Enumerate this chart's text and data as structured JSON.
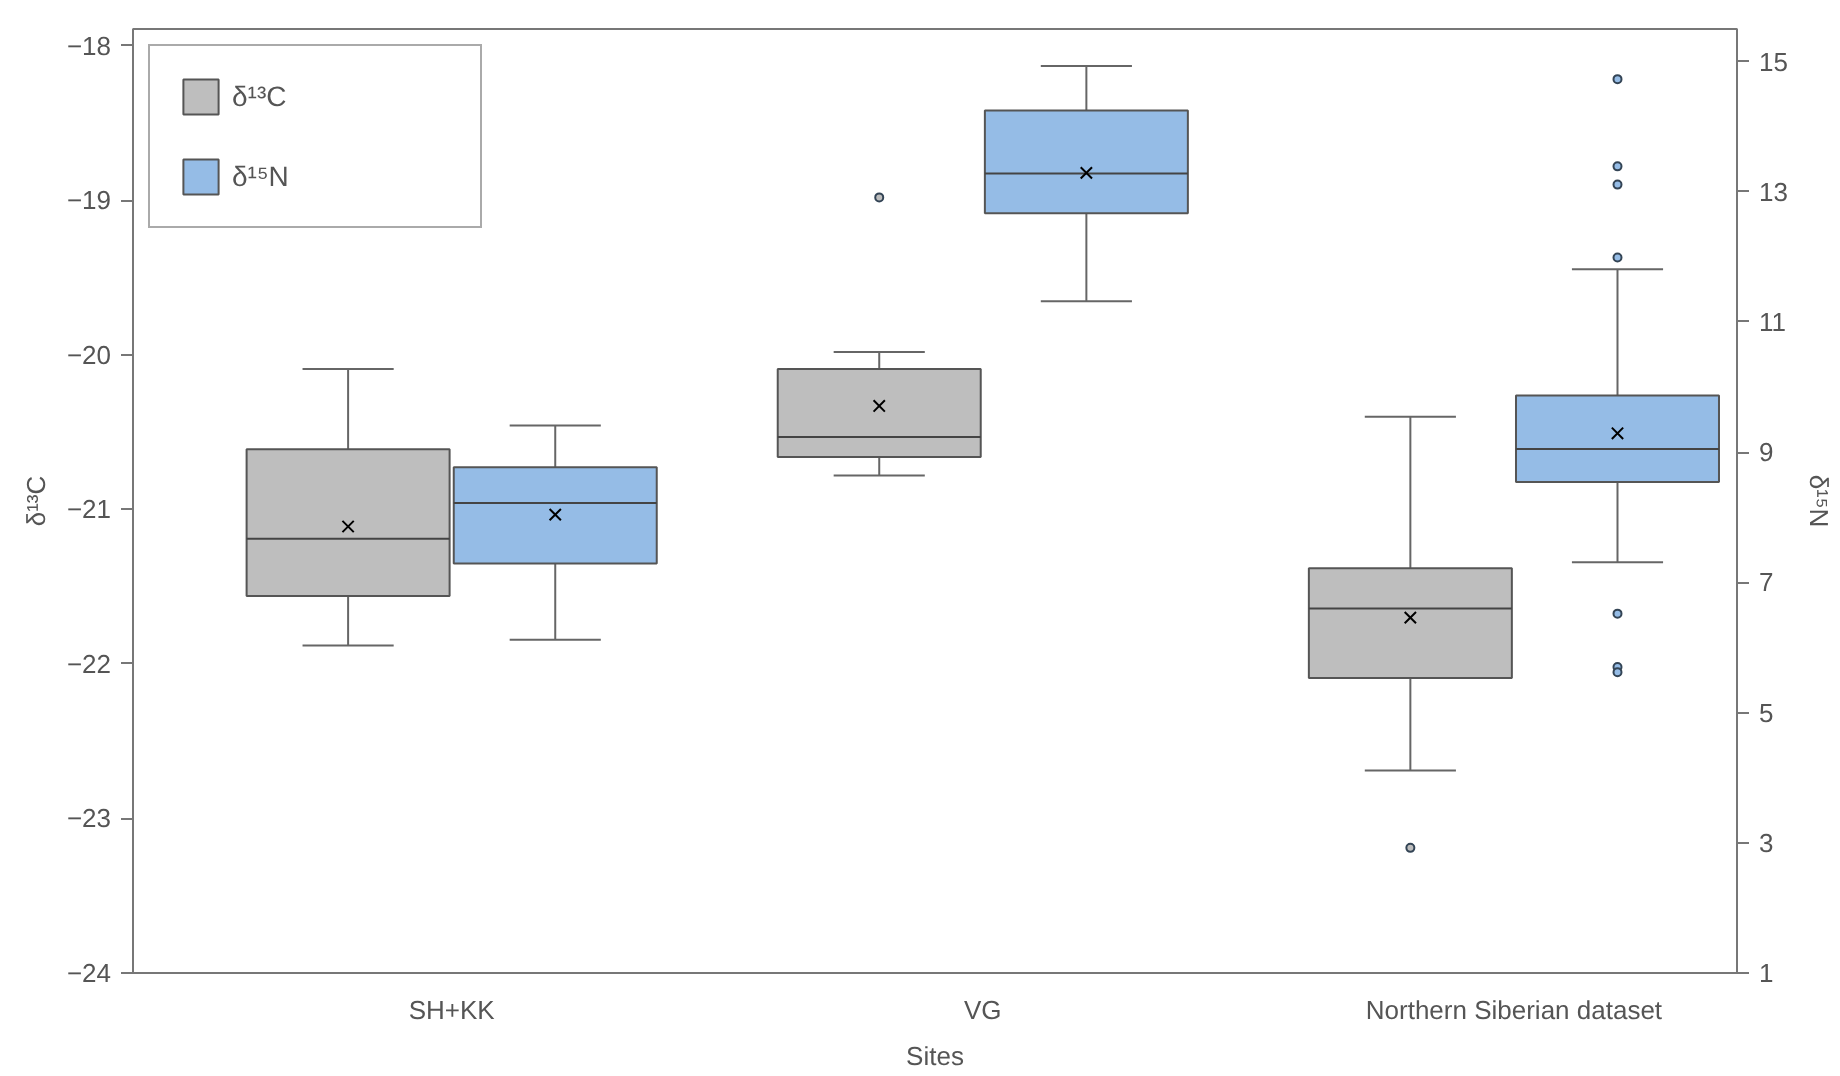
{
  "chart_data": {
    "type": "box",
    "xlabel": "Sites",
    "ylabel": "δ¹³C",
    "y2label": "δ¹⁵N",
    "categories": [
      "SH+KK",
      "VG",
      "Northern Siberian dataset"
    ],
    "ylim": [
      -24,
      -17.89
    ],
    "yticks": [
      -24,
      -23,
      -22,
      -21,
      -20,
      -19,
      -18
    ],
    "y2lim": [
      1,
      15.5
    ],
    "y2ticks": [
      1,
      3,
      5,
      7,
      9,
      11,
      13,
      15
    ],
    "legend": "top left",
    "grid": false,
    "series": [
      {
        "name": "δ¹³C",
        "color": "#bebebe",
        "boxes": [
          {
            "low": -21.88,
            "q1": -21.56,
            "median": -21.19,
            "q3": -20.61,
            "high": -20.09,
            "mean": -21.11
          },
          {
            "low": -20.78,
            "q1": -20.66,
            "median": -20.53,
            "q3": -20.09,
            "high": -19.98,
            "mean": -20.33,
            "outliers": [
              -18.98
            ]
          },
          {
            "low": -22.69,
            "q1": -22.09,
            "median": -21.64,
            "q3": -21.38,
            "high": -20.4,
            "mean": -21.7,
            "outliers": [
              -23.19
            ]
          }
        ]
      },
      {
        "name": "δ¹⁵N",
        "color": "#95bce6",
        "axis": "y2",
        "boxes": [
          {
            "low": 6.12,
            "q1": 7.29,
            "median": 8.22,
            "q3": 8.77,
            "high": 9.41,
            "mean": 8.04
          },
          {
            "low": 11.32,
            "q1": 12.67,
            "median": 13.28,
            "q3": 14.25,
            "high": 14.93,
            "mean": 13.29
          },
          {
            "low": 7.31,
            "q1": 8.54,
            "median": 9.05,
            "q3": 9.87,
            "high": 11.81,
            "mean": 9.29,
            "outliers": [
              14.73,
              13.39,
              13.11,
              11.99,
              6.52,
              5.7,
              5.62
            ]
          }
        ]
      }
    ]
  }
}
